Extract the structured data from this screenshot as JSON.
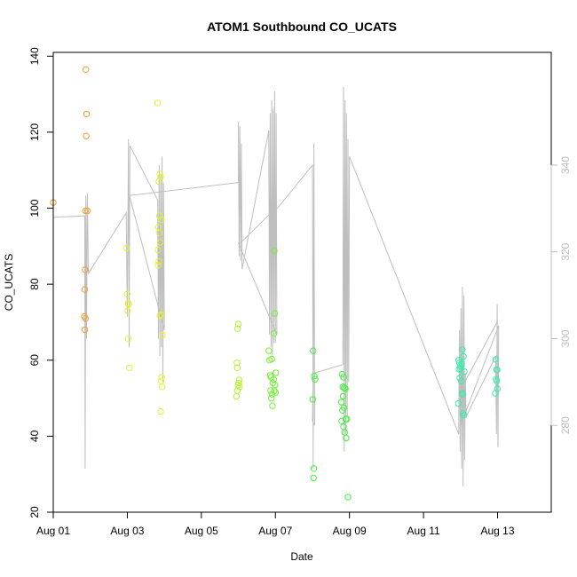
{
  "chart_data": {
    "type": "scatter",
    "title": "ATOM1 Southbound CO_UCATS",
    "xlabel": "Date",
    "ylabel": "CO_UCATS",
    "xlim": [
      0,
      13.45
    ],
    "ylim": [
      20,
      141
    ],
    "y2lim": [
      260,
      366
    ],
    "x_tick_values": [
      0,
      2,
      4,
      6,
      8,
      10,
      12
    ],
    "x_tick_labels": [
      "Aug 01",
      "Aug 03",
      "Aug 05",
      "Aug 07",
      "Aug 09",
      "Aug 11",
      "Aug 13"
    ],
    "y_ticks": [
      20,
      40,
      60,
      80,
      100,
      120,
      140
    ],
    "y2_ticks": [
      280,
      300,
      320,
      340
    ],
    "grid": false,
    "line_color": "#bebebe",
    "series": [
      {
        "color": "#f39c34",
        "points": [
          [
            0.0,
            101.5
          ],
          [
            0.88,
            136.5
          ],
          [
            0.9,
            124.8
          ],
          [
            0.89,
            119.0
          ],
          [
            0.87,
            99.3
          ],
          [
            0.92,
            99.3
          ],
          [
            0.86,
            83.8
          ],
          [
            0.85,
            78.6
          ],
          [
            0.84,
            71.5
          ],
          [
            0.87,
            71.0
          ],
          [
            0.85,
            68.0
          ]
        ]
      },
      {
        "color": "#e5f032",
        "points": [
          [
            1.98,
            89.5
          ],
          [
            2.0,
            77.4
          ],
          [
            2.02,
            75.0
          ],
          [
            2.04,
            74.7
          ],
          [
            2.01,
            73.0
          ],
          [
            2.03,
            65.6
          ],
          [
            2.06,
            58.0
          ],
          [
            2.82,
            127.7
          ],
          [
            2.85,
            107.0
          ],
          [
            2.88,
            109.0
          ],
          [
            2.9,
            108.2
          ],
          [
            2.87,
            98.0
          ],
          [
            2.92,
            97.0
          ],
          [
            2.84,
            95.0
          ],
          [
            2.86,
            93.5
          ],
          [
            2.89,
            91.0
          ],
          [
            2.83,
            89.0
          ],
          [
            2.85,
            86.0
          ],
          [
            2.83,
            85.0
          ],
          [
            2.91,
            72.0
          ],
          [
            2.88,
            71.7
          ],
          [
            2.95,
            66.6
          ],
          [
            2.93,
            55.5
          ],
          [
            2.91,
            54.5
          ],
          [
            2.94,
            53.0
          ],
          [
            2.9,
            46.5
          ]
        ]
      },
      {
        "color": "#b6f134",
        "points": [
          [
            5.0,
            69.5
          ],
          [
            4.98,
            68.3
          ],
          [
            4.96,
            59.3
          ],
          [
            4.97,
            58.0
          ],
          [
            5.02,
            54.8
          ],
          [
            5.01,
            54.0
          ],
          [
            4.99,
            53.5
          ],
          [
            5.03,
            53.0
          ],
          [
            4.97,
            52.0
          ],
          [
            4.95,
            50.5
          ]
        ]
      },
      {
        "color": "#74f035",
        "points": [
          [
            5.82,
            62.5
          ],
          [
            5.84,
            60.0
          ],
          [
            5.9,
            60.3
          ],
          [
            5.86,
            56.0
          ],
          [
            5.88,
            55.5
          ],
          [
            5.95,
            55.0
          ],
          [
            5.93,
            54.0
          ],
          [
            5.99,
            53.5
          ],
          [
            5.97,
            52.0
          ],
          [
            5.87,
            52.0
          ],
          [
            5.91,
            51.0
          ],
          [
            6.0,
            51.5
          ],
          [
            5.89,
            50.0
          ],
          [
            5.92,
            48.0
          ],
          [
            5.96,
            67.0
          ],
          [
            5.98,
            72.3
          ],
          [
            5.97,
            88.8
          ],
          [
            6.01,
            56.7
          ]
        ]
      },
      {
        "color": "#43f13c",
        "points": [
          [
            7.02,
            62.5
          ],
          [
            7.05,
            55.8
          ],
          [
            7.07,
            55.0
          ],
          [
            7.01,
            49.7
          ],
          [
            7.04,
            31.5
          ],
          [
            7.03,
            29.0
          ],
          [
            7.8,
            56.3
          ],
          [
            7.84,
            55.5
          ],
          [
            7.82,
            53.0
          ],
          [
            7.86,
            52.7
          ],
          [
            7.89,
            52.5
          ],
          [
            7.83,
            50.5
          ],
          [
            7.78,
            49.0
          ],
          [
            7.85,
            47.5
          ],
          [
            7.81,
            46.8
          ],
          [
            7.9,
            44.5
          ],
          [
            7.93,
            44.5
          ],
          [
            7.79,
            44.0
          ],
          [
            7.84,
            42.5
          ],
          [
            7.87,
            41.0
          ],
          [
            7.91,
            39.5
          ],
          [
            7.96,
            24.0
          ]
        ]
      },
      {
        "color": "#32f0aa",
        "points": [
          [
            10.95,
            60.0
          ],
          [
            10.97,
            59.3
          ],
          [
            10.99,
            58.5
          ],
          [
            10.96,
            57.6
          ],
          [
            11.0,
            57.7
          ],
          [
            10.98,
            55.3
          ],
          [
            11.02,
            54.5
          ],
          [
            11.05,
            62.8
          ],
          [
            11.08,
            61.0
          ],
          [
            11.03,
            59.0
          ],
          [
            11.1,
            57.0
          ],
          [
            11.04,
            51.3
          ],
          [
            11.06,
            51.0
          ],
          [
            10.94,
            48.6
          ],
          [
            11.07,
            46.0
          ],
          [
            11.09,
            45.5
          ],
          [
            11.95,
            60.2
          ],
          [
            11.97,
            57.5
          ],
          [
            11.99,
            57.5
          ],
          [
            11.96,
            55.0
          ],
          [
            11.98,
            54.5
          ],
          [
            12.0,
            52.5
          ],
          [
            11.94,
            51.3
          ]
        ]
      }
    ],
    "altitude_line": [
      [
        0.0,
        328
      ],
      [
        0.85,
        328.3
      ],
      [
        0.86,
        270
      ],
      [
        0.88,
        333
      ],
      [
        0.9,
        300
      ],
      [
        0.92,
        333.5
      ],
      [
        0.95,
        315
      ],
      [
        1.97,
        329
      ],
      [
        2.0,
        305
      ],
      [
        2.03,
        346
      ],
      [
        2.05,
        298
      ],
      [
        2.07,
        344.5
      ],
      [
        2.82,
        332
      ],
      [
        2.84,
        300
      ],
      [
        2.86,
        340
      ],
      [
        2.88,
        296
      ],
      [
        2.9,
        338
      ],
      [
        2.92,
        298
      ],
      [
        2.94,
        342
      ],
      [
        2.96,
        290
      ],
      [
        2.98,
        336
      ],
      [
        3.0,
        302
      ],
      [
        2.06,
        333
      ],
      [
        5.0,
        336
      ],
      [
        5.0,
        350
      ],
      [
        5.02,
        319
      ],
      [
        5.04,
        349
      ],
      [
        5.06,
        318
      ],
      [
        5.08,
        345
      ],
      [
        5.1,
        316
      ],
      [
        5.82,
        348
      ],
      [
        5.84,
        301
      ],
      [
        5.86,
        352
      ],
      [
        5.88,
        298
      ],
      [
        5.9,
        355
      ],
      [
        5.92,
        296
      ],
      [
        5.94,
        353
      ],
      [
        5.96,
        299
      ],
      [
        5.98,
        357
      ],
      [
        6.0,
        299
      ],
      [
        6.02,
        352
      ],
      [
        6.04,
        301
      ],
      [
        5.0,
        322
      ],
      [
        5.05,
        322
      ],
      [
        6.0,
        330
      ],
      [
        6.05,
        330
      ],
      [
        7.0,
        340
      ],
      [
        7.02,
        270
      ],
      [
        7.04,
        345
      ],
      [
        7.06,
        280
      ],
      [
        7.0,
        281
      ],
      [
        7.02,
        292
      ],
      [
        7.82,
        294
      ],
      [
        7.84,
        358
      ],
      [
        7.86,
        274
      ],
      [
        7.88,
        355
      ],
      [
        7.9,
        278
      ],
      [
        7.92,
        352
      ],
      [
        7.94,
        282
      ],
      [
        7.96,
        346
      ],
      [
        7.98,
        290
      ],
      [
        8.0,
        342
      ],
      [
        10.95,
        278
      ],
      [
        10.97,
        302
      ],
      [
        10.99,
        274
      ],
      [
        11.01,
        307
      ],
      [
        11.03,
        270
      ],
      [
        11.05,
        312
      ],
      [
        11.07,
        266
      ],
      [
        11.09,
        310
      ],
      [
        11.11,
        272
      ],
      [
        11.13,
        292
      ],
      [
        11.15,
        282
      ],
      [
        11.95,
        296
      ],
      [
        11.97,
        278
      ],
      [
        11.99,
        308
      ],
      [
        12.01,
        275
      ],
      [
        12.03,
        303
      ],
      [
        11.0,
        280
      ],
      [
        11.05,
        289
      ],
      [
        12.0,
        304
      ]
    ]
  }
}
